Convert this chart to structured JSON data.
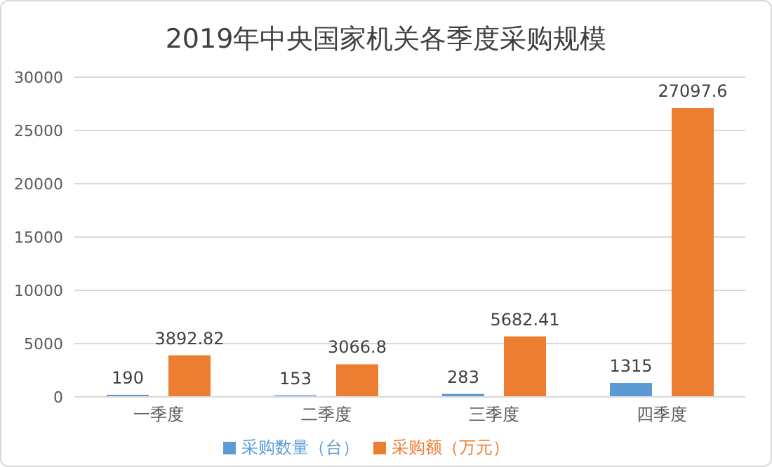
{
  "chart_data": {
    "type": "bar",
    "title": "2019年中央国家机关各季度采购规模",
    "categories": [
      "一季度",
      "二季度",
      "三季度",
      "四季度"
    ],
    "series": [
      {
        "name": "采购数量（台）",
        "color": "#5b9bd5",
        "values": [
          190,
          153,
          283,
          1315
        ]
      },
      {
        "name": "采购额（万元）",
        "color": "#ed7d31",
        "values": [
          3892.82,
          3066.8,
          5682.41,
          27097.6
        ]
      }
    ],
    "ylim": [
      0,
      30000
    ],
    "yticks": [
      0,
      5000,
      10000,
      15000,
      20000,
      25000,
      30000
    ],
    "grid": "y",
    "legend": "bottom",
    "data_labels": true
  }
}
